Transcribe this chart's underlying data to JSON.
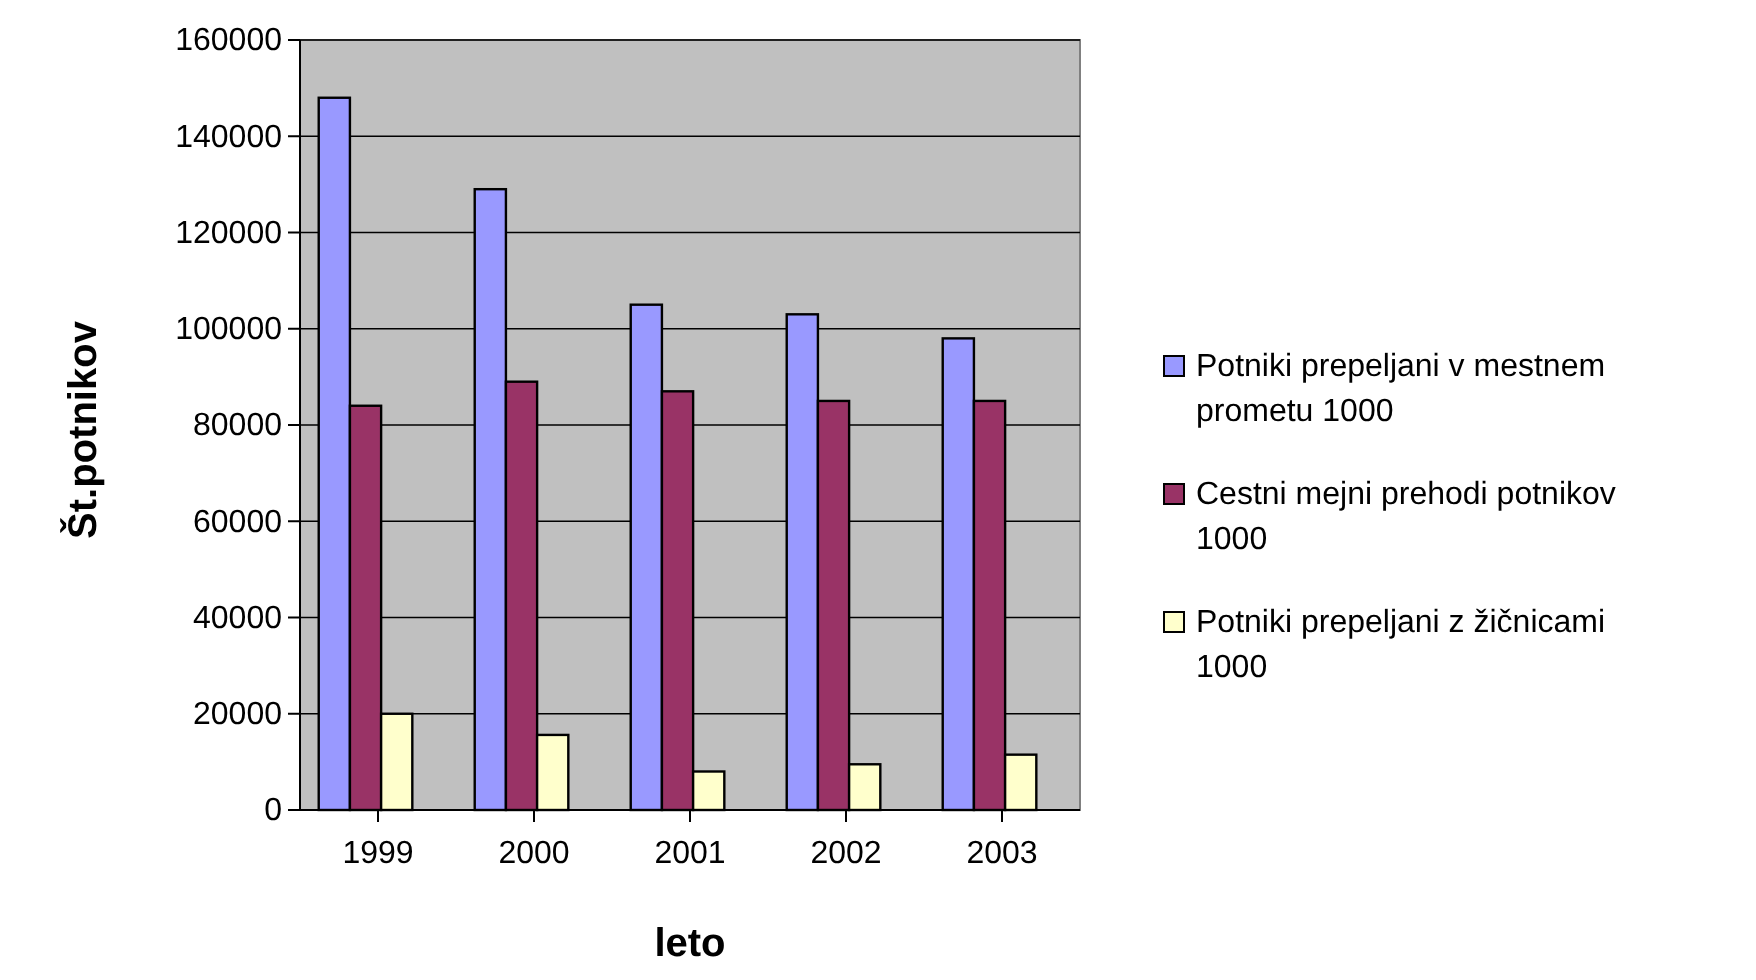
{
  "chart_data": {
    "type": "bar",
    "xlabel": "leto",
    "ylabel": "Št.potnikov",
    "categories": [
      "1999",
      "2000",
      "2001",
      "2002",
      "2003"
    ],
    "series": [
      {
        "name": "Potniki prepeljani v mestnem prometu  1000",
        "color": "#9999ff",
        "values": [
          148000,
          129000,
          105000,
          103000,
          98000
        ]
      },
      {
        "name": "Cestni mejni prehodi potnikov 1000",
        "color": "#993366",
        "values": [
          84000,
          89000,
          87000,
          85000,
          85000
        ]
      },
      {
        "name": "Potniki prepeljani z žičnicami 1000",
        "color": "#ffffcc",
        "values": [
          20000,
          15600,
          8000,
          9500,
          11500
        ]
      }
    ],
    "ylim": [
      0,
      160000
    ],
    "yticks": [
      0,
      20000,
      40000,
      60000,
      80000,
      100000,
      120000,
      140000,
      160000
    ],
    "grid": "y",
    "legend": "right"
  }
}
